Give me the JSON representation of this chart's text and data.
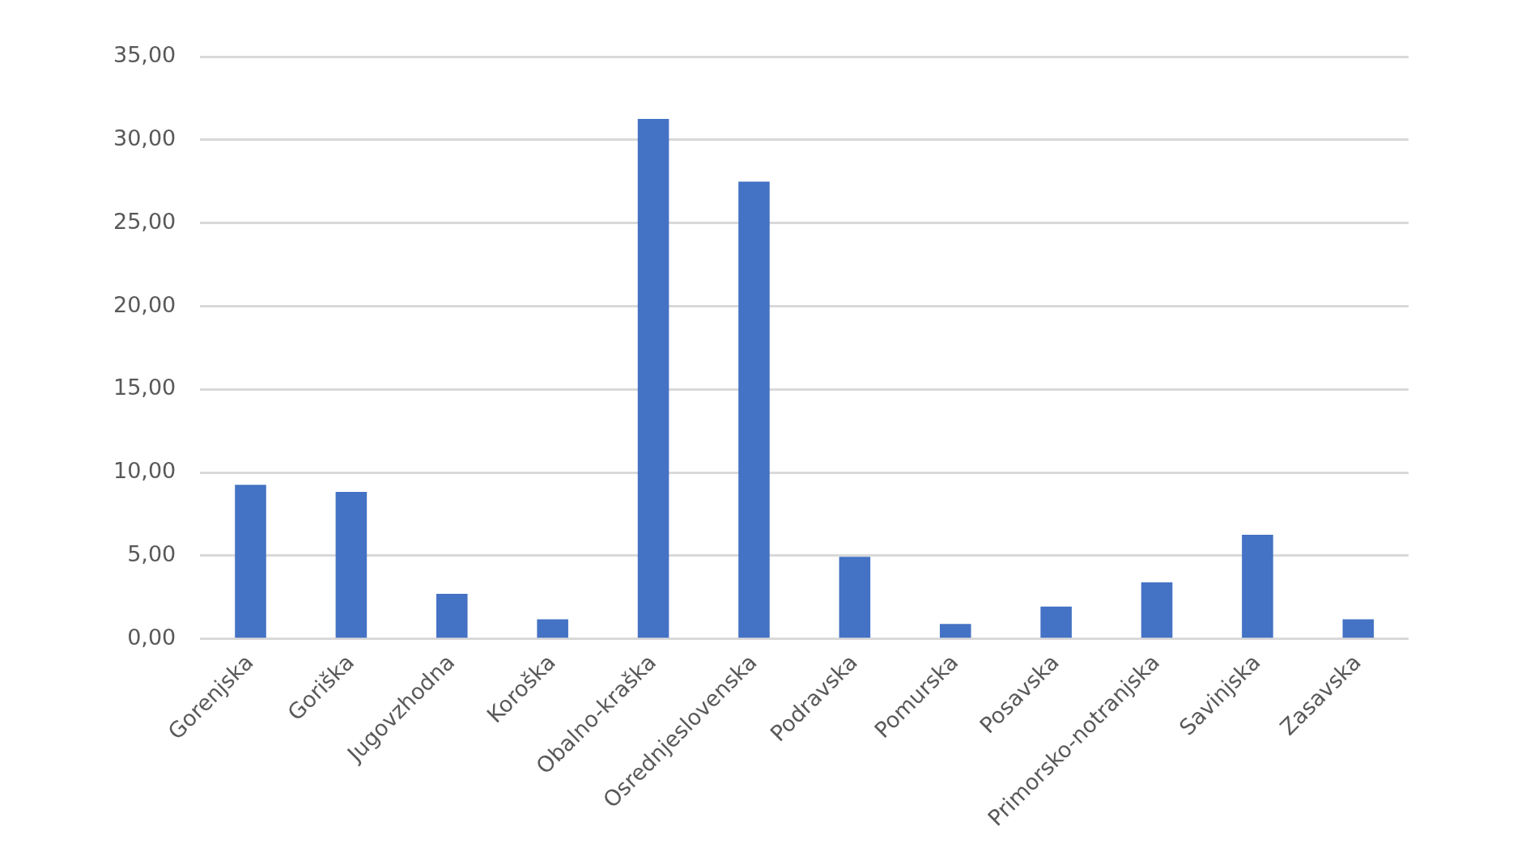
{
  "chart_data": {
    "type": "bar",
    "categories": [
      "Gorenjska",
      "Goriška",
      "Jugovzhodna",
      "Koroška",
      "Obalno-kraška",
      "Osrednjeslovenska",
      "Podravska",
      "Pomurska",
      "Posavska",
      "Primorsko-notranjska",
      "Savinjska",
      "Zasavska"
    ],
    "values": [
      9.26,
      8.84,
      2.71,
      1.18,
      31.25,
      27.49,
      4.94,
      0.9,
      1.95,
      3.41,
      6.26,
      1.18
    ],
    "color": "#4472c4",
    "ylim": [
      0,
      35
    ],
    "yticks": [
      {
        "value": 0,
        "label": "0,00"
      },
      {
        "value": 5,
        "label": "5,00"
      },
      {
        "value": 10,
        "label": "10,00"
      },
      {
        "value": 15,
        "label": "15,00"
      },
      {
        "value": 20,
        "label": "20,00"
      },
      {
        "value": 25,
        "label": "25,00"
      },
      {
        "value": 30,
        "label": "30,00"
      },
      {
        "value": 35,
        "label": "35,00"
      }
    ],
    "grid": "y",
    "legend": false
  }
}
